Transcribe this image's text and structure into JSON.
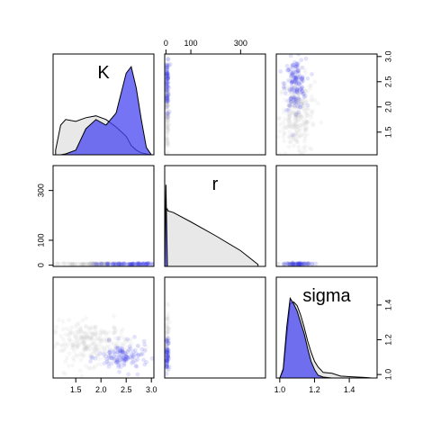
{
  "chart_data": {
    "type": "scatter",
    "variables": [
      "K",
      "r",
      "sigma"
    ],
    "series": [
      {
        "name": "",
        "color": "#BEBEBE"
      },
      {
        "name": "",
        "color": "#3B3BE8"
      }
    ],
    "ranges": {
      "K": [
        1.05,
        3.05
      ],
      "r": [
        -5,
        400
      ],
      "sigma": [
        0.98,
        1.56
      ]
    },
    "ticks": {
      "K": [
        "1.5",
        "2.0",
        "2.5",
        "3.0"
      ],
      "r": [
        "0",
        "100",
        "300"
      ],
      "sigma": [
        "1.0",
        "1.2",
        "1.4"
      ]
    },
    "tick_values": {
      "K": [
        1.5,
        2.0,
        2.5,
        3.0
      ],
      "r": [
        0,
        100,
        300
      ],
      "sigma": [
        1.0,
        1.2,
        1.4
      ]
    },
    "scatter_clusters": {
      "K_sigma": [
        {
          "series": 0,
          "cx": 1.8,
          "cy": 1.18,
          "sx": 0.4,
          "sy": 0.06,
          "n": 260
        },
        {
          "series": 1,
          "cx": 2.45,
          "cy": 1.1,
          "sx": 0.25,
          "sy": 0.04,
          "n": 120
        }
      ],
      "r_K": [
        {
          "series": 0,
          "cx": 2,
          "cy": 1.9,
          "sx": 0,
          "sy": 0.45,
          "n": 120
        },
        {
          "series": 1,
          "cx": 2,
          "cy": 2.5,
          "sx": 0,
          "sy": 0.3,
          "n": 80
        }
      ],
      "r_sigma": [
        {
          "series": 0,
          "cx": 2,
          "cy": 1.2,
          "sx": 0,
          "sy": 0.08,
          "n": 60
        },
        {
          "series": 1,
          "cx": 2,
          "cy": 1.12,
          "sx": 0,
          "sy": 0.05,
          "n": 60
        }
      ],
      "sigma_K": [
        {
          "series": 0,
          "cx": 1.1,
          "cy": 1.8,
          "sx": 0.05,
          "sy": 0.4,
          "n": 260
        },
        {
          "series": 1,
          "cx": 1.09,
          "cy": 2.45,
          "sx": 0.03,
          "sy": 0.25,
          "n": 140
        }
      ],
      "K_r": [
        {
          "series": 0,
          "cx": 1.9,
          "cy": 1,
          "sx": 0.45,
          "sy": 0,
          "n": 160
        },
        {
          "series": 1,
          "cx": 2.5,
          "cy": 1,
          "sx": 0.3,
          "sy": 0,
          "n": 100
        }
      ],
      "sigma_r": [
        {
          "series": 0,
          "cx": 1.1,
          "cy": 1,
          "sx": 0.05,
          "sy": 0,
          "n": 60
        },
        {
          "series": 1,
          "cx": 1.1,
          "cy": 1,
          "sx": 0.04,
          "sy": 0,
          "n": 60
        }
      ]
    },
    "densities": {
      "K": {
        "x": [
          1.1,
          1.2,
          1.3,
          1.5,
          1.7,
          1.9,
          2.1,
          2.3,
          2.5,
          2.6,
          2.7,
          2.8,
          2.9,
          3.0
        ],
        "series0": [
          0.05,
          0.32,
          0.38,
          0.36,
          0.4,
          0.42,
          0.38,
          0.3,
          0.2,
          0.1,
          0.05,
          0.02,
          0.01,
          0
        ],
        "series1": [
          0,
          0,
          0.01,
          0.05,
          0.28,
          0.38,
          0.32,
          0.45,
          0.88,
          0.95,
          0.72,
          0.38,
          0.08,
          0
        ]
      },
      "r": {
        "x": [
          -5,
          0,
          6,
          7,
          30,
          100,
          200,
          300,
          370
        ],
        "series0": [
          0,
          0.62,
          0.62,
          0.6,
          0.58,
          0.48,
          0.33,
          0.17,
          0.02
        ],
        "series1": [
          0,
          0.88,
          0,
          0,
          0,
          0,
          0,
          0,
          0
        ]
      },
      "sigma": {
        "x": [
          1.0,
          1.02,
          1.04,
          1.06,
          1.08,
          1.1,
          1.12,
          1.14,
          1.16,
          1.18,
          1.2,
          1.22,
          1.25,
          1.3,
          1.35,
          1.4,
          1.45,
          1.5,
          1.53
        ],
        "series0": [
          0,
          0.08,
          0.45,
          0.8,
          0.82,
          0.78,
          0.68,
          0.55,
          0.4,
          0.28,
          0.18,
          0.12,
          0.06,
          0.05,
          0.02,
          0.015,
          0.01,
          0.005,
          0
        ],
        "series1": [
          0,
          0.1,
          0.55,
          0.86,
          0.8,
          0.72,
          0.6,
          0.48,
          0.32,
          0.18,
          0.09,
          0.03,
          0.01,
          0,
          0,
          0,
          0,
          0,
          0
        ]
      }
    }
  }
}
